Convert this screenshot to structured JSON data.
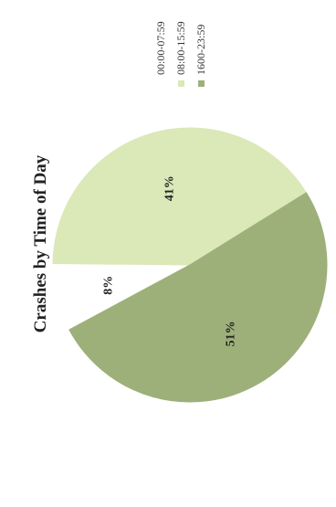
{
  "chart_data": {
    "type": "pie",
    "title": "Crashes by Time of Day",
    "orientation": "rotated 90° counter-clockwise",
    "legend_position": "top-right",
    "slices": [
      {
        "label": "00:00-07:59",
        "value": 8,
        "display": "8%",
        "color": "#ffffff"
      },
      {
        "label": "08:00-15:59",
        "value": 41,
        "display": "41%",
        "color": "#dbe8b8"
      },
      {
        "label": "1600-23:59",
        "value": 51,
        "display": "51%",
        "color": "#9eb07a"
      }
    ]
  }
}
